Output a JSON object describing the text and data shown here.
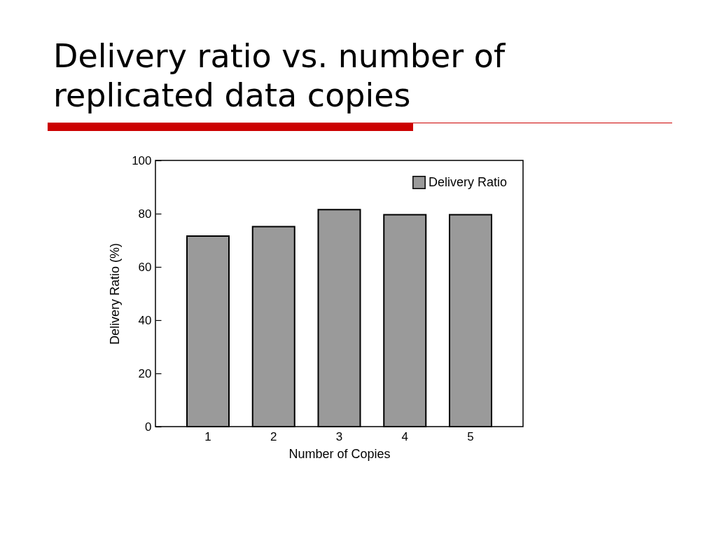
{
  "chart_data": {
    "type": "bar",
    "title": "Delivery ratio vs. number of replicated data copies",
    "xlabel": "Number of Copies",
    "ylabel": "Delivery Ratio  (%)",
    "categories": [
      "1",
      "2",
      "3",
      "4",
      "5"
    ],
    "series": [
      {
        "name": "Delivery Ratio",
        "color": "#9a9a9a",
        "values": [
          71.6,
          75.1,
          81.5,
          79.6,
          79.6
        ]
      }
    ],
    "ylim": [
      0,
      100
    ],
    "yticks": [
      0,
      20,
      40,
      60,
      80,
      100
    ],
    "grid": false,
    "legend": "top right"
  }
}
